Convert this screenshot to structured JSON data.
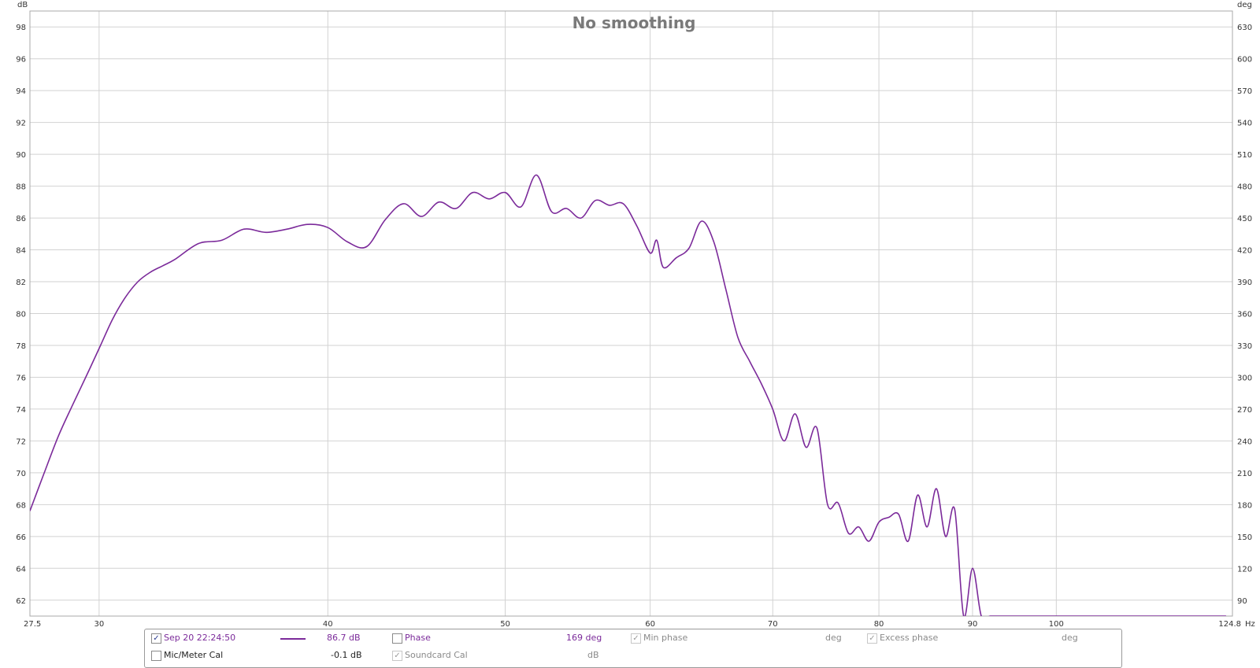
{
  "chart_data": {
    "type": "line",
    "title": "No smoothing",
    "x_unit": "Hz",
    "y_left_unit": "dB",
    "y_right_unit": "deg",
    "x_scale": "log",
    "xlim": [
      27.5,
      124.8
    ],
    "ylim_left": [
      61,
      99
    ],
    "ylim_right": [
      75,
      645
    ],
    "grid": true,
    "x_tick_labels": [
      "27.5",
      "30",
      "40",
      "50",
      "60",
      "70",
      "80",
      "90",
      "100",
      "124.8"
    ],
    "x_tick_values": [
      27.5,
      30,
      40,
      50,
      60,
      70,
      80,
      90,
      100,
      124.8
    ],
    "y_left_ticks": [
      62,
      64,
      66,
      68,
      70,
      72,
      74,
      76,
      78,
      80,
      82,
      84,
      86,
      88,
      90,
      92,
      94,
      96,
      98
    ],
    "y_right_ticks": [
      90,
      120,
      150,
      180,
      210,
      240,
      270,
      300,
      330,
      360,
      390,
      420,
      450,
      480,
      510,
      540,
      570,
      600,
      630
    ],
    "series": [
      {
        "color": "#7b2a9a",
        "x": [
          27.5,
          28.0,
          28.5,
          29.0,
          29.5,
          30.0,
          30.5,
          31.0,
          31.5,
          32.0,
          32.5,
          33.0,
          34.0,
          35.0,
          36.0,
          37.0,
          38.0,
          39.0,
          40.0,
          41.0,
          42.0,
          43.0,
          44.0,
          45.0,
          46.0,
          47.0,
          48.0,
          49.0,
          50.0,
          51.0,
          52.0,
          53.0,
          54.0,
          55.0,
          56.0,
          57.0,
          58.0,
          59.0,
          60.0,
          60.5,
          61.0,
          62.0,
          63.0,
          64.0,
          65.0,
          66.0,
          67.0,
          68.0,
          69.0,
          70.0,
          71.0,
          72.0,
          73.0,
          74.0,
          75.0,
          76.0,
          77.0,
          78.0,
          79.0,
          80.0,
          81.0,
          82.0,
          83.0,
          84.0,
          85.0,
          86.0,
          87.0,
          88.0,
          89.0,
          90.0,
          91.0,
          92.0,
          93.0,
          94.0,
          95.0,
          96.0,
          97.0,
          98.0,
          99.0,
          100.0,
          101.0,
          102.0,
          103.0,
          104.0,
          105.0,
          106.0,
          107.0,
          108.0,
          109.0,
          110.0,
          111.0,
          112.0,
          113.0,
          114.0,
          115.0,
          116.0,
          117.0,
          118.0,
          119.0,
          120.0,
          120.8,
          121.0,
          122.0,
          123.0,
          123.8
        ],
        "y": [
          67.6,
          70.0,
          72.3,
          74.2,
          76.0,
          77.8,
          79.6,
          81.0,
          82.0,
          82.6,
          83.0,
          83.4,
          84.4,
          84.6,
          85.3,
          85.1,
          85.3,
          85.6,
          85.4,
          84.5,
          84.2,
          85.9,
          86.9,
          86.1,
          87.0,
          86.6,
          87.6,
          87.2,
          87.6,
          86.7,
          88.7,
          86.4,
          86.6,
          86.0,
          87.1,
          86.8,
          86.9,
          85.5,
          83.8,
          84.6,
          82.9,
          83.5,
          84.1,
          85.8,
          84.5,
          81.5,
          78.5,
          77.0,
          75.6,
          74.0,
          72.0,
          73.7,
          71.6,
          72.8,
          68.0,
          68.1,
          66.2,
          66.6,
          65.7,
          66.9,
          67.2,
          67.4,
          65.7,
          68.6,
          66.6,
          69.0,
          66.0,
          67.7,
          61.0,
          64.0,
          61.0,
          61.0,
          61.0,
          61.0,
          61.0,
          61.0,
          61.0,
          61.0,
          61.0,
          61.0,
          61.0,
          61.0,
          61.0,
          61.0,
          61.0,
          61.0,
          61.0,
          61.0,
          61.0,
          61.0,
          61.0,
          61.0,
          61.0,
          61.0,
          61.0,
          61.0,
          61.0,
          61.0,
          61.0,
          61.0,
          61.0,
          61.0,
          61.0,
          61.0,
          61.0
        ]
      }
    ]
  },
  "legend": {
    "row1": {
      "measurement_label": "Sep 20 22:24:50",
      "value": "86.7 dB",
      "phase_label": "Phase",
      "phase_value": "169 deg",
      "min_phase_label": "Min phase",
      "min_phase_unit": "deg",
      "excess_phase_label": "Excess phase",
      "excess_phase_unit": "deg"
    },
    "row2": {
      "cal_label": "Mic/Meter Cal",
      "cal_value": "-0.1 dB",
      "soundcard_label": "Soundcard Cal",
      "soundcard_unit": "dB"
    }
  }
}
